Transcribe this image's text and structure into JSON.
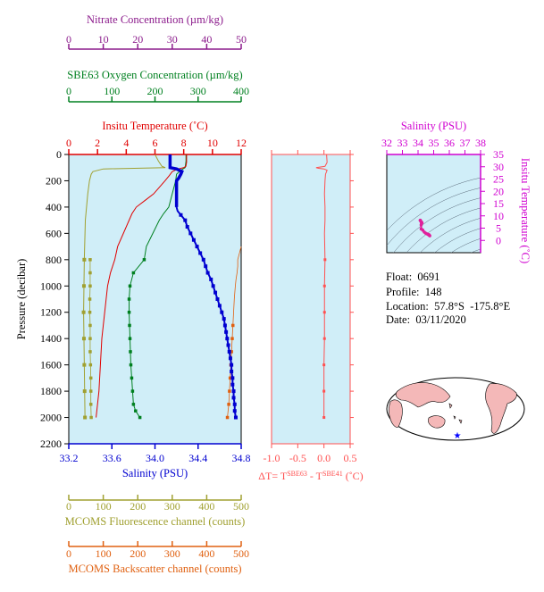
{
  "info": {
    "float_line": "Float:  0691",
    "profile_line": "Profile:  148",
    "location_line": "Location:  57.8°S  -175.8°E",
    "date_line": "Date:  03/11/2020"
  },
  "colors": {
    "nitrate": "#8b1a8b",
    "oxygen": "#008020",
    "temperature": "#e00000",
    "salinity": "#0000d0",
    "fluorescence": "#a0a030",
    "backscatter": "#e06010",
    "delta_t": "#ff5050",
    "ts_axis": "#d000d0",
    "plot_bg": "#d0eef8",
    "land": "#f4b8b8"
  },
  "chart_data": [
    {
      "type": "line",
      "panel": "profiles",
      "ylabel": "Pressure (decibar)",
      "ylim": [
        2200,
        0
      ],
      "yticks": [
        0,
        200,
        400,
        600,
        800,
        1000,
        1200,
        1400,
        1600,
        1800,
        2000,
        2200
      ],
      "axes": {
        "nitrate": {
          "label": "Nitrate Concentration (µm/kg)",
          "lim": [
            0,
            50
          ],
          "ticks": [
            0,
            10,
            20,
            30,
            40,
            50
          ]
        },
        "oxygen": {
          "label": "SBE63 Oxygen Concentration (µm/kg)",
          "lim": [
            0,
            400
          ],
          "ticks": [
            0,
            100,
            200,
            300,
            400
          ]
        },
        "temperature": {
          "label": "Insitu Temperature (˚C)",
          "lim": [
            0,
            12
          ],
          "ticks": [
            0,
            2,
            4,
            6,
            8,
            10,
            12
          ]
        },
        "salinity": {
          "label": "Salinity (PSU)",
          "lim": [
            33.2,
            34.8
          ],
          "ticks": [
            "33.2",
            "33.6",
            "34.0",
            "34.4",
            "34.8"
          ]
        },
        "fluorescence": {
          "label": "MCOMS Fluorescence channel (counts)",
          "lim": [
            0,
            500
          ],
          "ticks": [
            0,
            100,
            200,
            300,
            400,
            500
          ]
        },
        "backscatter": {
          "label": "MCOMS Backscatter channel (counts)",
          "lim": [
            0,
            500
          ],
          "ticks": [
            0,
            100,
            200,
            300,
            400,
            500
          ]
        }
      },
      "series": [
        {
          "axis": "salinity",
          "pressure": [
            0,
            30,
            60,
            100,
            110,
            130,
            150,
            180,
            200,
            250,
            300,
            350,
            400,
            430,
            460,
            500,
            550,
            600,
            650,
            700,
            750,
            800,
            850,
            900,
            950,
            1000,
            1050,
            1100,
            1150,
            1200,
            1250,
            1300,
            1350,
            1400,
            1450,
            1500,
            1550,
            1600,
            1650,
            1700,
            1750,
            1800,
            1850,
            1900,
            1950,
            2000
          ],
          "values": [
            34.14,
            34.14,
            34.14,
            34.14,
            34.2,
            34.25,
            34.24,
            34.22,
            34.2,
            34.2,
            34.2,
            34.2,
            34.2,
            34.21,
            34.24,
            34.28,
            34.3,
            34.33,
            34.36,
            34.39,
            34.42,
            34.45,
            34.47,
            34.49,
            34.52,
            34.54,
            34.56,
            34.58,
            34.6,
            34.62,
            34.64,
            34.65,
            34.66,
            34.67,
            34.68,
            34.69,
            34.7,
            34.71,
            34.71,
            34.72,
            34.72,
            34.73,
            34.73,
            34.74,
            34.74,
            34.75
          ]
        },
        {
          "axis": "temperature",
          "pressure": [
            0,
            30,
            60,
            90,
            100,
            110,
            130,
            160,
            200,
            250,
            300,
            350,
            400,
            450,
            500,
            600,
            700,
            800,
            900,
            1000,
            1100,
            1200,
            1400,
            1600,
            1800,
            2000
          ],
          "values": [
            8.2,
            8.2,
            8.2,
            8.15,
            8.0,
            7.6,
            7.2,
            7.0,
            6.7,
            6.3,
            5.9,
            5.3,
            4.7,
            4.4,
            4.2,
            3.8,
            3.4,
            3.2,
            2.9,
            2.7,
            2.6,
            2.5,
            2.3,
            2.2,
            2.1,
            1.9
          ]
        },
        {
          "axis": "oxygen",
          "pressure": [
            0,
            50,
            100,
            120,
            150,
            200,
            300,
            400,
            450,
            500,
            600,
            700,
            800,
            900,
            1000,
            1100,
            1200,
            1300,
            1400,
            1500,
            1600,
            1700,
            1800,
            1900,
            1950,
            2000
          ],
          "values": [
            272,
            272,
            270,
            260,
            250,
            248,
            240,
            232,
            220,
            210,
            195,
            180,
            175,
            150,
            142,
            140,
            140,
            141,
            142,
            143,
            144,
            146,
            148,
            150,
            155,
            165
          ]
        },
        {
          "axis": "nitrate",
          "pressure": [
            0,
            50,
            90,
            100,
            110,
            130,
            150,
            200,
            300,
            500,
            800,
            1000,
            1200,
            1400,
            1600,
            1800,
            2000
          ],
          "values": [
            25,
            26,
            27,
            28,
            10,
            7,
            6.5,
            6,
            5.5,
            4.8,
            4.5,
            4.4,
            4.3,
            4.4,
            4.5,
            4.6,
            4.7
          ]
        },
        {
          "axis": "fluorescence",
          "pressure": [
            800,
            900,
            1000,
            1100,
            1200,
            1300,
            1400,
            1500,
            1600,
            1700,
            1800,
            1900,
            2000
          ],
          "values": [
            62,
            62,
            62,
            61,
            61,
            62,
            62,
            62,
            63,
            64,
            64,
            64,
            65
          ]
        },
        {
          "axis": "backscatter",
          "pressure": [
            700,
            750,
            800,
            850,
            900,
            950,
            1000,
            1100,
            1200,
            1300,
            1400,
            1500,
            1600,
            1700,
            1800,
            1900,
            2000
          ],
          "values": [
            500,
            495,
            490,
            490,
            488,
            485,
            483,
            480,
            478,
            476,
            474,
            472,
            470,
            468,
            466,
            464,
            460
          ]
        }
      ]
    },
    {
      "type": "line",
      "panel": "delta_t",
      "xlabel": "ΔT= T",
      "xlabel_sup1": "SBE63",
      "xlabel_mid": " - T",
      "xlabel_sup2": "SBE41",
      "xlabel_tail": " (˚C)",
      "xlim": [
        -1.0,
        0.5
      ],
      "xticks": [
        "-1.0",
        "-0.5",
        "0.0",
        "0.5"
      ],
      "ylim": [
        2200,
        0
      ],
      "pressure": [
        0,
        60,
        90,
        100,
        105,
        110,
        120,
        150,
        200,
        300,
        400,
        500,
        600,
        800,
        1000,
        1200,
        1400,
        1600,
        1800,
        2000
      ],
      "values": [
        0.05,
        0.06,
        0.02,
        -0.15,
        -0.1,
        0.0,
        0.06,
        0.03,
        0.02,
        0.01,
        0.02,
        0.02,
        0.01,
        0.02,
        0.01,
        0.01,
        0.01,
        0.0,
        0.0,
        0.0
      ]
    },
    {
      "type": "scatter",
      "panel": "ts",
      "xlabel": "Salinity (PSU)",
      "ylabel": "Insitu Temperature (˚C)",
      "xlim": [
        32,
        38
      ],
      "ylim": [
        -5,
        35
      ],
      "xticks": [
        "32",
        "33",
        "34",
        "35",
        "36",
        "37",
        "38"
      ],
      "yticks": [
        "0",
        "5",
        "10",
        "15",
        "20",
        "25",
        "30",
        "35"
      ],
      "x": [
        34.14,
        34.15,
        34.2,
        34.25,
        34.22,
        34.2,
        34.2,
        34.3,
        34.4,
        34.5,
        34.6,
        34.65,
        34.7,
        34.72,
        34.75
      ],
      "y": [
        8.2,
        8.1,
        7.6,
        7.2,
        7.0,
        6.3,
        4.7,
        4.2,
        3.4,
        2.9,
        2.6,
        2.4,
        2.3,
        2.1,
        1.9
      ]
    }
  ]
}
